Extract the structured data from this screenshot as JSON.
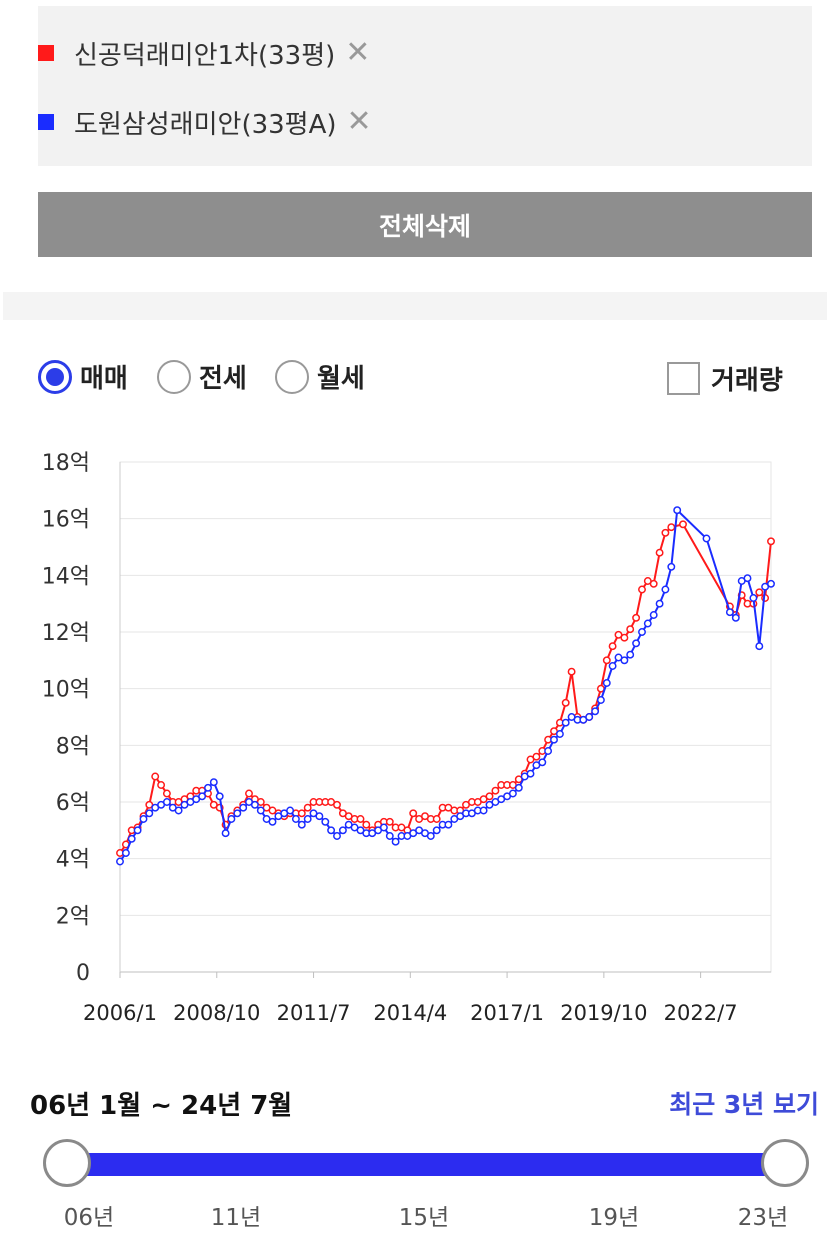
{
  "compare": {
    "items": [
      {
        "label": "신공덕래미안1차(33평)",
        "color": "#ff1a1a",
        "remove_icon": "close-icon"
      },
      {
        "label": "도원삼성래미안(33평A)",
        "color": "#1a2cff",
        "remove_icon": "close-icon"
      }
    ],
    "clear_all_label": "전체삭제"
  },
  "filters": {
    "types": [
      {
        "label": "매매",
        "selected": true
      },
      {
        "label": "전세",
        "selected": false
      },
      {
        "label": "월세",
        "selected": false
      }
    ],
    "volume_label": "거래량",
    "volume_checked": false
  },
  "range": {
    "label": "06년 1월 ~ 24년 7월",
    "recent_link": "최근 3년 보기",
    "ticks": [
      "06년",
      "11년",
      "15년",
      "19년",
      "23년"
    ]
  },
  "chart_data": {
    "type": "line",
    "x_tick_labels": [
      "2006/1",
      "2008/10",
      "2011/7",
      "2014/4",
      "2017/1",
      "2019/10",
      "2022/7"
    ],
    "x_ticks": [
      "2006-01",
      "2008-10",
      "2011-07",
      "2014-04",
      "2017-01",
      "2019-10",
      "2022-07"
    ],
    "x_range": [
      "2006-01",
      "2024-07"
    ],
    "y_unit": "억",
    "y_ticks": [
      0,
      2,
      4,
      6,
      8,
      10,
      12,
      14,
      16,
      18
    ],
    "y_tick_labels": [
      "0",
      "2억",
      "4억",
      "6억",
      "8억",
      "10억",
      "12억",
      "14억",
      "16억",
      "18억"
    ],
    "ylim": [
      0,
      18
    ],
    "grid": true,
    "series": [
      {
        "name": "신공덕래미안1차(33평)",
        "color": "#ff1a1a",
        "points": [
          [
            "2006-01",
            4.2
          ],
          [
            "2006-03",
            4.5
          ],
          [
            "2006-05",
            5.0
          ],
          [
            "2006-07",
            5.1
          ],
          [
            "2006-09",
            5.5
          ],
          [
            "2006-11",
            5.9
          ],
          [
            "2007-01",
            6.9
          ],
          [
            "2007-03",
            6.6
          ],
          [
            "2007-05",
            6.3
          ],
          [
            "2007-07",
            6.0
          ],
          [
            "2007-09",
            6.0
          ],
          [
            "2007-11",
            6.1
          ],
          [
            "2008-01",
            6.2
          ],
          [
            "2008-03",
            6.4
          ],
          [
            "2008-05",
            6.4
          ],
          [
            "2008-07",
            6.3
          ],
          [
            "2008-09",
            5.9
          ],
          [
            "2008-11",
            5.8
          ],
          [
            "2009-01",
            5.2
          ],
          [
            "2009-03",
            5.5
          ],
          [
            "2009-05",
            5.7
          ],
          [
            "2009-07",
            5.9
          ],
          [
            "2009-09",
            6.3
          ],
          [
            "2009-11",
            6.1
          ],
          [
            "2010-01",
            6.0
          ],
          [
            "2010-03",
            5.8
          ],
          [
            "2010-05",
            5.7
          ],
          [
            "2010-07",
            5.6
          ],
          [
            "2010-09",
            5.5
          ],
          [
            "2010-11",
            5.6
          ],
          [
            "2011-01",
            5.6
          ],
          [
            "2011-03",
            5.6
          ],
          [
            "2011-05",
            5.8
          ],
          [
            "2011-07",
            6.0
          ],
          [
            "2011-09",
            6.0
          ],
          [
            "2011-11",
            6.0
          ],
          [
            "2012-01",
            6.0
          ],
          [
            "2012-03",
            5.9
          ],
          [
            "2012-05",
            5.6
          ],
          [
            "2012-07",
            5.5
          ],
          [
            "2012-09",
            5.4
          ],
          [
            "2012-11",
            5.4
          ],
          [
            "2013-01",
            5.2
          ],
          [
            "2013-03",
            5.0
          ],
          [
            "2013-05",
            5.2
          ],
          [
            "2013-07",
            5.3
          ],
          [
            "2013-09",
            5.3
          ],
          [
            "2013-11",
            5.1
          ],
          [
            "2014-01",
            5.1
          ],
          [
            "2014-03",
            5.0
          ],
          [
            "2014-05",
            5.6
          ],
          [
            "2014-07",
            5.4
          ],
          [
            "2014-09",
            5.5
          ],
          [
            "2014-11",
            5.4
          ],
          [
            "2015-01",
            5.4
          ],
          [
            "2015-03",
            5.8
          ],
          [
            "2015-05",
            5.8
          ],
          [
            "2015-07",
            5.7
          ],
          [
            "2015-09",
            5.7
          ],
          [
            "2015-11",
            5.9
          ],
          [
            "2016-01",
            6.0
          ],
          [
            "2016-03",
            6.0
          ],
          [
            "2016-05",
            6.1
          ],
          [
            "2016-07",
            6.2
          ],
          [
            "2016-09",
            6.4
          ],
          [
            "2016-11",
            6.6
          ],
          [
            "2017-01",
            6.6
          ],
          [
            "2017-03",
            6.6
          ],
          [
            "2017-05",
            6.8
          ],
          [
            "2017-07",
            7.0
          ],
          [
            "2017-09",
            7.5
          ],
          [
            "2017-11",
            7.6
          ],
          [
            "2018-01",
            7.8
          ],
          [
            "2018-03",
            8.2
          ],
          [
            "2018-05",
            8.5
          ],
          [
            "2018-07",
            8.8
          ],
          [
            "2018-09",
            9.5
          ],
          [
            "2018-11",
            10.6
          ],
          [
            "2019-01",
            9.0
          ],
          [
            "2019-03",
            8.9
          ],
          [
            "2019-05",
            9.0
          ],
          [
            "2019-07",
            9.3
          ],
          [
            "2019-09",
            10.0
          ],
          [
            "2019-11",
            11.0
          ],
          [
            "2020-01",
            11.5
          ],
          [
            "2020-03",
            11.9
          ],
          [
            "2020-05",
            11.8
          ],
          [
            "2020-07",
            12.1
          ],
          [
            "2020-09",
            12.5
          ],
          [
            "2020-11",
            13.5
          ],
          [
            "2021-01",
            13.8
          ],
          [
            "2021-03",
            13.7
          ],
          [
            "2021-05",
            14.8
          ],
          [
            "2021-07",
            15.5
          ],
          [
            "2021-09",
            15.7
          ],
          [
            "2022-01",
            15.8
          ],
          [
            "2023-05",
            12.9
          ],
          [
            "2023-07",
            12.6
          ],
          [
            "2023-09",
            13.3
          ],
          [
            "2023-11",
            13.0
          ],
          [
            "2024-01",
            13.0
          ],
          [
            "2024-03",
            13.4
          ],
          [
            "2024-05",
            13.2
          ],
          [
            "2024-07",
            15.2
          ]
        ]
      },
      {
        "name": "도원삼성래미안(33평A)",
        "color": "#1a2cff",
        "points": [
          [
            "2006-01",
            3.9
          ],
          [
            "2006-03",
            4.2
          ],
          [
            "2006-05",
            4.7
          ],
          [
            "2006-07",
            5.0
          ],
          [
            "2006-09",
            5.4
          ],
          [
            "2006-11",
            5.6
          ],
          [
            "2007-01",
            5.8
          ],
          [
            "2007-03",
            5.9
          ],
          [
            "2007-05",
            6.0
          ],
          [
            "2007-07",
            5.8
          ],
          [
            "2007-09",
            5.7
          ],
          [
            "2007-11",
            5.9
          ],
          [
            "2008-01",
            6.0
          ],
          [
            "2008-03",
            6.1
          ],
          [
            "2008-05",
            6.2
          ],
          [
            "2008-07",
            6.5
          ],
          [
            "2008-09",
            6.7
          ],
          [
            "2008-11",
            6.2
          ],
          [
            "2009-01",
            4.9
          ],
          [
            "2009-03",
            5.4
          ],
          [
            "2009-05",
            5.6
          ],
          [
            "2009-07",
            5.8
          ],
          [
            "2009-09",
            6.0
          ],
          [
            "2009-11",
            5.9
          ],
          [
            "2010-01",
            5.7
          ],
          [
            "2010-03",
            5.4
          ],
          [
            "2010-05",
            5.3
          ],
          [
            "2010-07",
            5.5
          ],
          [
            "2010-09",
            5.6
          ],
          [
            "2010-11",
            5.7
          ],
          [
            "2011-01",
            5.4
          ],
          [
            "2011-03",
            5.2
          ],
          [
            "2011-05",
            5.4
          ],
          [
            "2011-07",
            5.6
          ],
          [
            "2011-09",
            5.5
          ],
          [
            "2011-11",
            5.3
          ],
          [
            "2012-01",
            5.0
          ],
          [
            "2012-03",
            4.8
          ],
          [
            "2012-05",
            5.0
          ],
          [
            "2012-07",
            5.2
          ],
          [
            "2012-09",
            5.1
          ],
          [
            "2012-11",
            5.0
          ],
          [
            "2013-01",
            4.9
          ],
          [
            "2013-03",
            4.9
          ],
          [
            "2013-05",
            5.0
          ],
          [
            "2013-07",
            5.1
          ],
          [
            "2013-09",
            4.8
          ],
          [
            "2013-11",
            4.6
          ],
          [
            "2014-01",
            4.8
          ],
          [
            "2014-03",
            4.8
          ],
          [
            "2014-05",
            4.9
          ],
          [
            "2014-07",
            5.0
          ],
          [
            "2014-09",
            4.9
          ],
          [
            "2014-11",
            4.8
          ],
          [
            "2015-01",
            5.0
          ],
          [
            "2015-03",
            5.2
          ],
          [
            "2015-05",
            5.2
          ],
          [
            "2015-07",
            5.4
          ],
          [
            "2015-09",
            5.5
          ],
          [
            "2015-11",
            5.6
          ],
          [
            "2016-01",
            5.6
          ],
          [
            "2016-03",
            5.7
          ],
          [
            "2016-05",
            5.7
          ],
          [
            "2016-07",
            5.9
          ],
          [
            "2016-09",
            6.0
          ],
          [
            "2016-11",
            6.1
          ],
          [
            "2017-01",
            6.2
          ],
          [
            "2017-03",
            6.3
          ],
          [
            "2017-05",
            6.5
          ],
          [
            "2017-07",
            6.9
          ],
          [
            "2017-09",
            7.0
          ],
          [
            "2017-11",
            7.3
          ],
          [
            "2018-01",
            7.4
          ],
          [
            "2018-03",
            7.8
          ],
          [
            "2018-05",
            8.2
          ],
          [
            "2018-07",
            8.4
          ],
          [
            "2018-09",
            8.8
          ],
          [
            "2018-11",
            9.0
          ],
          [
            "2019-01",
            8.9
          ],
          [
            "2019-03",
            8.9
          ],
          [
            "2019-05",
            9.0
          ],
          [
            "2019-07",
            9.2
          ],
          [
            "2019-09",
            9.6
          ],
          [
            "2019-11",
            10.2
          ],
          [
            "2020-01",
            10.8
          ],
          [
            "2020-03",
            11.1
          ],
          [
            "2020-05",
            11.0
          ],
          [
            "2020-07",
            11.2
          ],
          [
            "2020-09",
            11.6
          ],
          [
            "2020-11",
            12.0
          ],
          [
            "2021-01",
            12.3
          ],
          [
            "2021-03",
            12.6
          ],
          [
            "2021-05",
            13.0
          ],
          [
            "2021-07",
            13.5
          ],
          [
            "2021-09",
            14.3
          ],
          [
            "2021-11",
            16.3
          ],
          [
            "2022-09",
            15.3
          ],
          [
            "2023-05",
            12.7
          ],
          [
            "2023-07",
            12.5
          ],
          [
            "2023-09",
            13.8
          ],
          [
            "2023-11",
            13.9
          ],
          [
            "2024-01",
            13.2
          ],
          [
            "2024-03",
            11.5
          ],
          [
            "2024-05",
            13.6
          ],
          [
            "2024-07",
            13.7
          ]
        ]
      }
    ]
  }
}
